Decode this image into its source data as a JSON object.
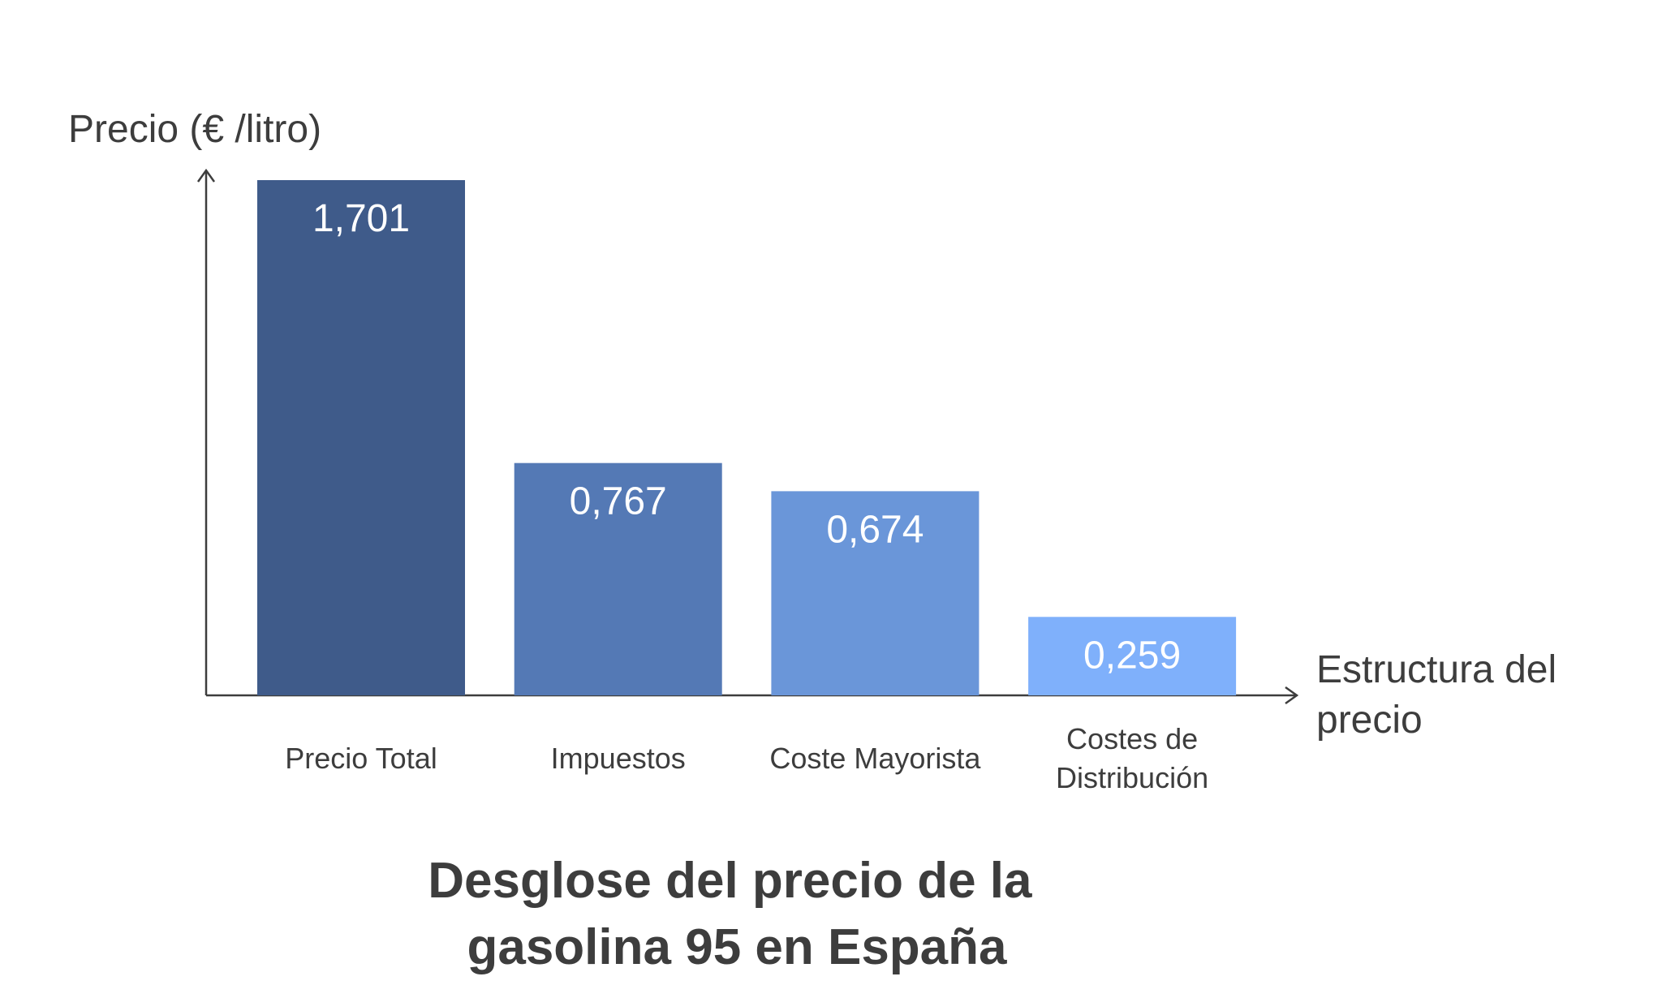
{
  "chart_data": {
    "type": "bar",
    "title": [
      "Desglose del precio de la",
      "gasolina 95 en España"
    ],
    "ylabel": "Precio (€ /litro)",
    "xlabel": [
      "Estructura del",
      "precio"
    ],
    "categories": [
      [
        "Precio Total"
      ],
      [
        "Impuestos"
      ],
      [
        "Coste Mayorista"
      ],
      [
        "Costes de",
        "Distribución"
      ]
    ],
    "values": [
      1.701,
      0.767,
      0.674,
      0.259
    ],
    "value_labels": [
      "1,701",
      "0,767",
      "0,674",
      "0,259"
    ],
    "colors": [
      "#3f5b8a",
      "#5479b5",
      "#6a96d9",
      "#7fb0fb"
    ],
    "ylim": [
      0,
      1.701
    ],
    "grid": false,
    "legend": "none"
  }
}
